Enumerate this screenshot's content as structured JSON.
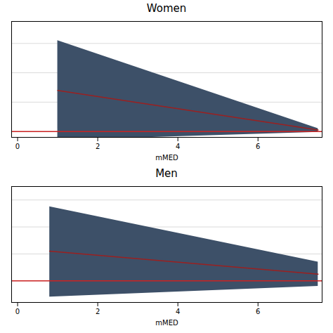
{
  "chart_data": [
    {
      "type": "line",
      "title": "Women",
      "xlabel": "mMED",
      "x": [
        1.0,
        7.5
      ],
      "series": [
        {
          "type": "area",
          "color": "#3d5068",
          "lower": [
            0.94,
            0.995
          ],
          "upper": [
            1.62,
            1.02
          ]
        },
        {
          "type": "line",
          "color": "#9b2020",
          "values": [
            1.28,
            1.01
          ]
        }
      ],
      "reference_line": {
        "value": 1.0,
        "color": "#cc2222"
      },
      "xlim": [
        -0.15,
        7.6
      ],
      "xticks": [
        0,
        2,
        4,
        6
      ],
      "ylim": [
        0.96,
        1.75
      ],
      "yticks": [
        1.0,
        1.2,
        1.4,
        1.6
      ],
      "grid": true,
      "tick_labels": "x"
    },
    {
      "type": "line",
      "title": "Men",
      "xlabel": "mMED",
      "x": [
        0.8,
        7.5
      ],
      "series": [
        {
          "type": "area",
          "color": "#3d5068",
          "lower": [
            0.88,
            0.96
          ],
          "upper": [
            1.55,
            1.14
          ]
        },
        {
          "type": "line",
          "color": "#9b2020",
          "values": [
            1.22,
            1.05
          ]
        }
      ],
      "reference_line": {
        "value": 1.0,
        "color": "#cc2222"
      },
      "xlim": [
        -0.15,
        7.6
      ],
      "xticks": [
        0,
        2,
        4,
        6
      ],
      "ylim": [
        0.84,
        1.7
      ],
      "yticks": [
        1.0,
        1.2,
        1.4,
        1.6
      ],
      "grid": true,
      "tick_labels": "x"
    }
  ]
}
